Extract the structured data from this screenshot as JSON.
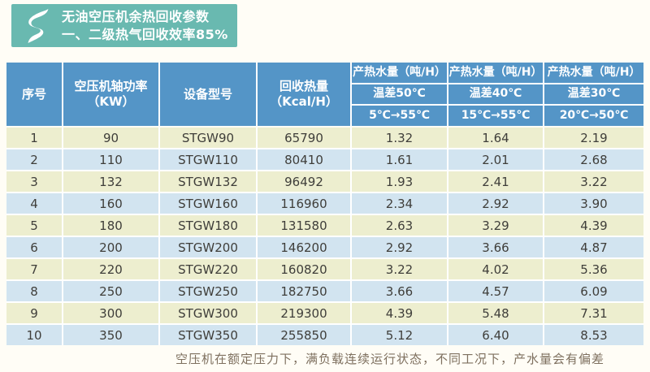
{
  "banner": {
    "bg_color": "#69b9b0",
    "logo": "s-swoosh-icon",
    "title_line1": "无油空压机余热回收参数",
    "title_line2": "一、二级热气回收效率85%"
  },
  "table": {
    "header": {
      "bg_color": "#5495c7",
      "col_no": "序号",
      "col_power_line1": "空压机轴功率",
      "col_power_line2": "（KW）",
      "col_model": "设备型号",
      "col_heat_line1": "回收热量",
      "col_heat_line2": "（Kcal/H）",
      "water_groups": [
        {
          "title": "产热水量（吨/H）",
          "diff": "温差50℃",
          "range": "5℃→55℃"
        },
        {
          "title": "产热水量（吨/H）",
          "diff": "温差40℃",
          "range": "15℃→55℃"
        },
        {
          "title": "产热水量（吨/H）",
          "diff": "温差30℃",
          "range": "20℃→50℃"
        }
      ]
    },
    "row_colors": {
      "odd": "#edeecf",
      "even": "#d2e4f0"
    },
    "rows": [
      {
        "no": "1",
        "power": "90",
        "model": "STGW90",
        "heat": "65790",
        "w50": "1.32",
        "w40": "1.64",
        "w30": "2.19"
      },
      {
        "no": "2",
        "power": "110",
        "model": "STGW110",
        "heat": "80410",
        "w50": "1.61",
        "w40": "2.01",
        "w30": "2.68"
      },
      {
        "no": "3",
        "power": "132",
        "model": "STGW132",
        "heat": "96492",
        "w50": "1.93",
        "w40": "2.41",
        "w30": "3.22"
      },
      {
        "no": "4",
        "power": "160",
        "model": "STGW160",
        "heat": "116960",
        "w50": "2.34",
        "w40": "2.92",
        "w30": "3.90"
      },
      {
        "no": "5",
        "power": "180",
        "model": "STGW180",
        "heat": "131580",
        "w50": "2.63",
        "w40": "3.29",
        "w30": "4.39"
      },
      {
        "no": "6",
        "power": "200",
        "model": "STGW200",
        "heat": "146200",
        "w50": "2.92",
        "w40": "3.66",
        "w30": "4.87"
      },
      {
        "no": "7",
        "power": "220",
        "model": "STGW220",
        "heat": "160820",
        "w50": "3.22",
        "w40": "4.02",
        "w30": "5.36"
      },
      {
        "no": "8",
        "power": "250",
        "model": "STGW250",
        "heat": "182750",
        "w50": "3.66",
        "w40": "4.57",
        "w30": "6.09"
      },
      {
        "no": "9",
        "power": "300",
        "model": "STGW300",
        "heat": "219300",
        "w50": "4.39",
        "w40": "5.48",
        "w30": "7.31"
      },
      {
        "no": "10",
        "power": "350",
        "model": "STGW350",
        "heat": "255850",
        "w50": "5.12",
        "w40": "6.40",
        "w30": "8.53"
      }
    ]
  },
  "footer": {
    "note": "空压机在额定压力下，满负载连续运行状态，不同工况下，产水量会有偏差"
  }
}
